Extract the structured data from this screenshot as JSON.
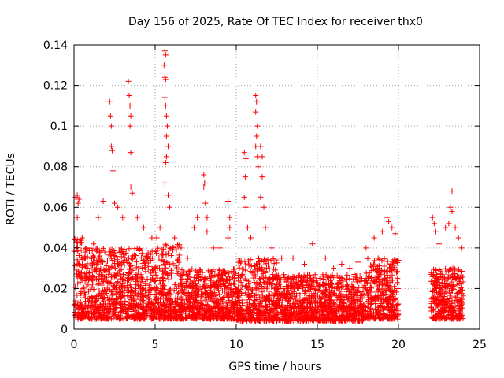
{
  "chart_data": {
    "type": "scatter",
    "title": "Day 156 of 2025, Rate Of TEC Index for receiver thx0",
    "xlabel": "GPS time / hours",
    "ylabel": "ROTI / TECUs",
    "xlim": [
      0,
      25
    ],
    "ylim": [
      0,
      0.14
    ],
    "xticks": [
      0,
      5,
      10,
      15,
      20,
      25
    ],
    "xtick_labels": [
      "0",
      "5",
      "10",
      "15",
      "20",
      "25"
    ],
    "yticks": [
      0,
      0.02,
      0.04,
      0.06,
      0.08,
      0.1,
      0.12,
      0.14
    ],
    "ytick_labels": [
      "0",
      "0.02",
      "0.04",
      "0.06",
      "0.08",
      "0.1",
      "0.12",
      "0.14"
    ],
    "grid": true,
    "marker": "+",
    "color": "#ff0000",
    "data_gap_hours": [
      20.0,
      22.0
    ],
    "series": [
      {
        "name": "ROTI",
        "points": [
          [
            0.1,
            0.065
          ],
          [
            0.2,
            0.066
          ],
          [
            0.25,
            0.062
          ],
          [
            0.3,
            0.064
          ],
          [
            0.2,
            0.055
          ],
          [
            0.5,
            0.045
          ],
          [
            0.8,
            0.04
          ],
          [
            1.2,
            0.042
          ],
          [
            1.5,
            0.055
          ],
          [
            1.8,
            0.063
          ],
          [
            2.2,
            0.112
          ],
          [
            2.25,
            0.105
          ],
          [
            2.3,
            0.1
          ],
          [
            2.3,
            0.09
          ],
          [
            2.35,
            0.088
          ],
          [
            2.4,
            0.078
          ],
          [
            2.5,
            0.062
          ],
          [
            2.7,
            0.06
          ],
          [
            3.0,
            0.055
          ],
          [
            3.35,
            0.122
          ],
          [
            3.4,
            0.115
          ],
          [
            3.45,
            0.11
          ],
          [
            3.5,
            0.105
          ],
          [
            3.45,
            0.1
          ],
          [
            3.5,
            0.087
          ],
          [
            3.5,
            0.07
          ],
          [
            3.6,
            0.067
          ],
          [
            3.9,
            0.055
          ],
          [
            4.3,
            0.05
          ],
          [
            4.8,
            0.045
          ],
          [
            5.1,
            0.045
          ],
          [
            5.3,
            0.05
          ],
          [
            5.6,
            0.137
          ],
          [
            5.65,
            0.135
          ],
          [
            5.55,
            0.13
          ],
          [
            5.6,
            0.124
          ],
          [
            5.65,
            0.123
          ],
          [
            5.6,
            0.114
          ],
          [
            5.65,
            0.11
          ],
          [
            5.7,
            0.105
          ],
          [
            5.75,
            0.1
          ],
          [
            5.7,
            0.095
          ],
          [
            5.8,
            0.09
          ],
          [
            5.7,
            0.085
          ],
          [
            5.65,
            0.082
          ],
          [
            5.6,
            0.072
          ],
          [
            5.8,
            0.066
          ],
          [
            5.9,
            0.06
          ],
          [
            6.2,
            0.045
          ],
          [
            6.6,
            0.04
          ],
          [
            7.0,
            0.035
          ],
          [
            7.4,
            0.05
          ],
          [
            7.6,
            0.055
          ],
          [
            8.0,
            0.076
          ],
          [
            8.05,
            0.072
          ],
          [
            8.0,
            0.07
          ],
          [
            8.1,
            0.062
          ],
          [
            8.2,
            0.055
          ],
          [
            8.2,
            0.048
          ],
          [
            8.6,
            0.04
          ],
          [
            9.0,
            0.04
          ],
          [
            9.5,
            0.063
          ],
          [
            9.6,
            0.055
          ],
          [
            9.6,
            0.05
          ],
          [
            9.5,
            0.045
          ],
          [
            10.5,
            0.087
          ],
          [
            10.6,
            0.084
          ],
          [
            10.55,
            0.075
          ],
          [
            10.5,
            0.065
          ],
          [
            10.6,
            0.06
          ],
          [
            10.7,
            0.05
          ],
          [
            10.9,
            0.045
          ],
          [
            11.2,
            0.115
          ],
          [
            11.25,
            0.112
          ],
          [
            11.2,
            0.107
          ],
          [
            11.3,
            0.1
          ],
          [
            11.25,
            0.095
          ],
          [
            11.2,
            0.09
          ],
          [
            11.3,
            0.085
          ],
          [
            11.35,
            0.08
          ],
          [
            11.5,
            0.09
          ],
          [
            11.6,
            0.085
          ],
          [
            11.6,
            0.075
          ],
          [
            11.5,
            0.065
          ],
          [
            11.7,
            0.06
          ],
          [
            11.8,
            0.05
          ],
          [
            12.2,
            0.04
          ],
          [
            12.8,
            0.035
          ],
          [
            13.5,
            0.035
          ],
          [
            14.2,
            0.032
          ],
          [
            14.7,
            0.042
          ],
          [
            15.5,
            0.035
          ],
          [
            16.0,
            0.03
          ],
          [
            16.5,
            0.032
          ],
          [
            17.0,
            0.03
          ],
          [
            17.5,
            0.033
          ],
          [
            18.0,
            0.04
          ],
          [
            18.5,
            0.045
          ],
          [
            19.0,
            0.048
          ],
          [
            19.3,
            0.055
          ],
          [
            19.4,
            0.053
          ],
          [
            19.6,
            0.05
          ],
          [
            19.8,
            0.047
          ],
          [
            22.1,
            0.055
          ],
          [
            22.2,
            0.052
          ],
          [
            22.3,
            0.048
          ],
          [
            22.5,
            0.042
          ],
          [
            22.9,
            0.05
          ],
          [
            23.1,
            0.052
          ],
          [
            23.2,
            0.06
          ],
          [
            23.3,
            0.058
          ],
          [
            23.3,
            0.068
          ],
          [
            23.5,
            0.05
          ],
          [
            23.7,
            0.045
          ],
          [
            23.9,
            0.04
          ]
        ],
        "band": [
          {
            "x": [
              0.0,
              0.5
            ],
            "y": [
              0.005,
              0.045
            ]
          },
          {
            "x": [
              0.5,
              5.5
            ],
            "y": [
              0.005,
              0.04
            ]
          },
          {
            "x": [
              5.5,
              6.5
            ],
            "y": [
              0.005,
              0.042
            ]
          },
          {
            "x": [
              6.5,
              10.0
            ],
            "y": [
              0.005,
              0.03
            ]
          },
          {
            "x": [
              10.0,
              12.5
            ],
            "y": [
              0.004,
              0.035
            ]
          },
          {
            "x": [
              12.5,
              18.0
            ],
            "y": [
              0.004,
              0.027
            ]
          },
          {
            "x": [
              18.0,
              20.0
            ],
            "y": [
              0.005,
              0.035
            ]
          },
          {
            "x": [
              22.0,
              24.0
            ],
            "y": [
              0.005,
              0.03
            ]
          }
        ]
      }
    ]
  }
}
